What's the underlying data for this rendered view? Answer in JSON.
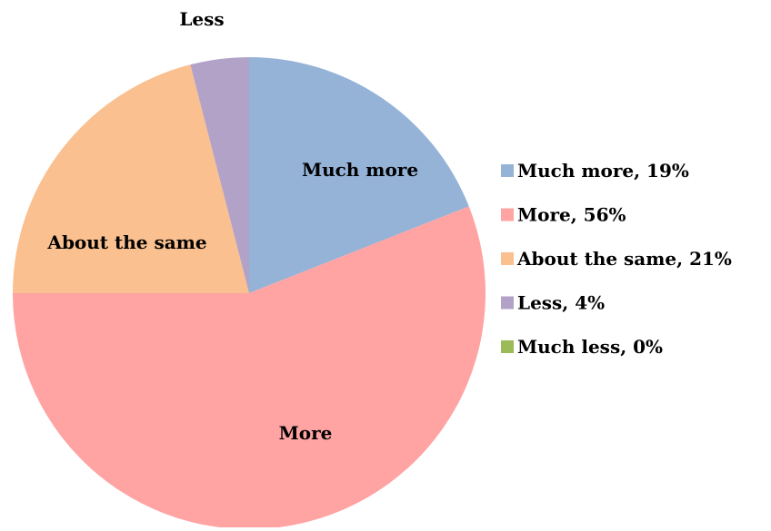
{
  "chart_data": {
    "type": "pie",
    "title": "",
    "slices": [
      {
        "label": "Much more",
        "value": 19,
        "color": "#95B3D7",
        "slice_label": "Much more",
        "legend_label": "Much more, 19%"
      },
      {
        "label": "More",
        "value": 56,
        "color": "#FFA3A3",
        "slice_label": "More",
        "legend_label": "More, 56%"
      },
      {
        "label": "About the same",
        "value": 21,
        "color": "#FAC090",
        "slice_label": "About the same",
        "legend_label": "About the same, 21%"
      },
      {
        "label": "Less",
        "value": 4,
        "color": "#B3A2C7",
        "slice_label": "Less",
        "legend_label": "Less, 4%"
      },
      {
        "label": "Much less",
        "value": 0,
        "color": "#9BBB59",
        "slice_label": "",
        "legend_label": "Much less, 0%"
      }
    ],
    "legend_position": "right",
    "start_angle": "12 o'clock",
    "direction": "clockwise"
  }
}
